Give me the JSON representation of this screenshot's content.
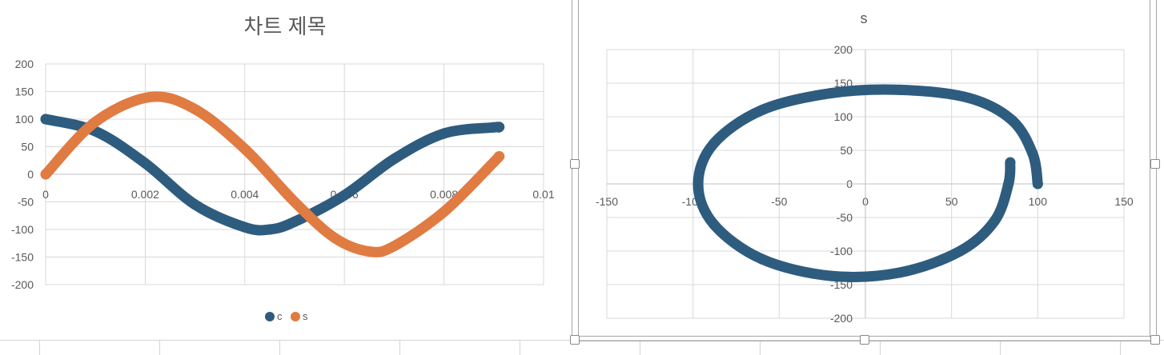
{
  "colors": {
    "c": "#2e5c7f",
    "s": "#e07b42",
    "grid": "#d9d9d9",
    "text": "#595959"
  },
  "chart_data": [
    {
      "type": "scatter",
      "title": "차트 제목",
      "xlabel": "",
      "ylabel": "",
      "xlim": [
        0,
        0.01
      ],
      "ylim": [
        -200,
        200
      ],
      "x_ticks": [
        "0",
        "0.002",
        "0.004",
        "0.006",
        "0.008",
        "0.01"
      ],
      "y_ticks": [
        "200",
        "150",
        "100",
        "50",
        "0",
        "-50",
        "-100",
        "-150",
        "-200"
      ],
      "grid": true,
      "legend": "bottom",
      "series": [
        {
          "name": "c",
          "x": [
            0,
            0.001,
            0.002,
            0.003,
            0.004,
            0.0045,
            0.005,
            0.006,
            0.007,
            0.008,
            0.009,
            0.0091
          ],
          "y": [
            100,
            78,
            20,
            -55,
            -96,
            -100,
            -86,
            -38,
            28,
            74,
            85,
            85
          ]
        },
        {
          "name": "s",
          "x": [
            0,
            0.001,
            0.0021,
            0.003,
            0.004,
            0.005,
            0.0058,
            0.0065,
            0.007,
            0.008,
            0.009,
            0.0091
          ],
          "y": [
            0,
            95,
            140,
            118,
            46,
            -50,
            -115,
            -140,
            -130,
            -68,
            22,
            32
          ]
        }
      ]
    },
    {
      "type": "scatter",
      "title": "s",
      "xlabel": "",
      "ylabel": "",
      "xlim": [
        -150,
        150
      ],
      "ylim": [
        -200,
        200
      ],
      "x_ticks": [
        "-150",
        "-100",
        "-50",
        "0",
        "50",
        "100",
        "150"
      ],
      "y_ticks": [
        "200",
        "150",
        "100",
        "50",
        "0",
        "-50",
        "-100",
        "-150",
        "-200"
      ],
      "grid": true,
      "legend": "none",
      "series": [
        {
          "name": "",
          "x": [
            100,
            97,
            85,
            60,
            20,
            -20,
            -60,
            -88,
            -97,
            -88,
            -60,
            -20,
            20,
            55,
            75,
            83,
            84
          ],
          "y": [
            0,
            45,
            95,
            128,
            140,
            135,
            110,
            60,
            0,
            -60,
            -112,
            -137,
            -132,
            -100,
            -55,
            0,
            32
          ]
        }
      ]
    }
  ]
}
